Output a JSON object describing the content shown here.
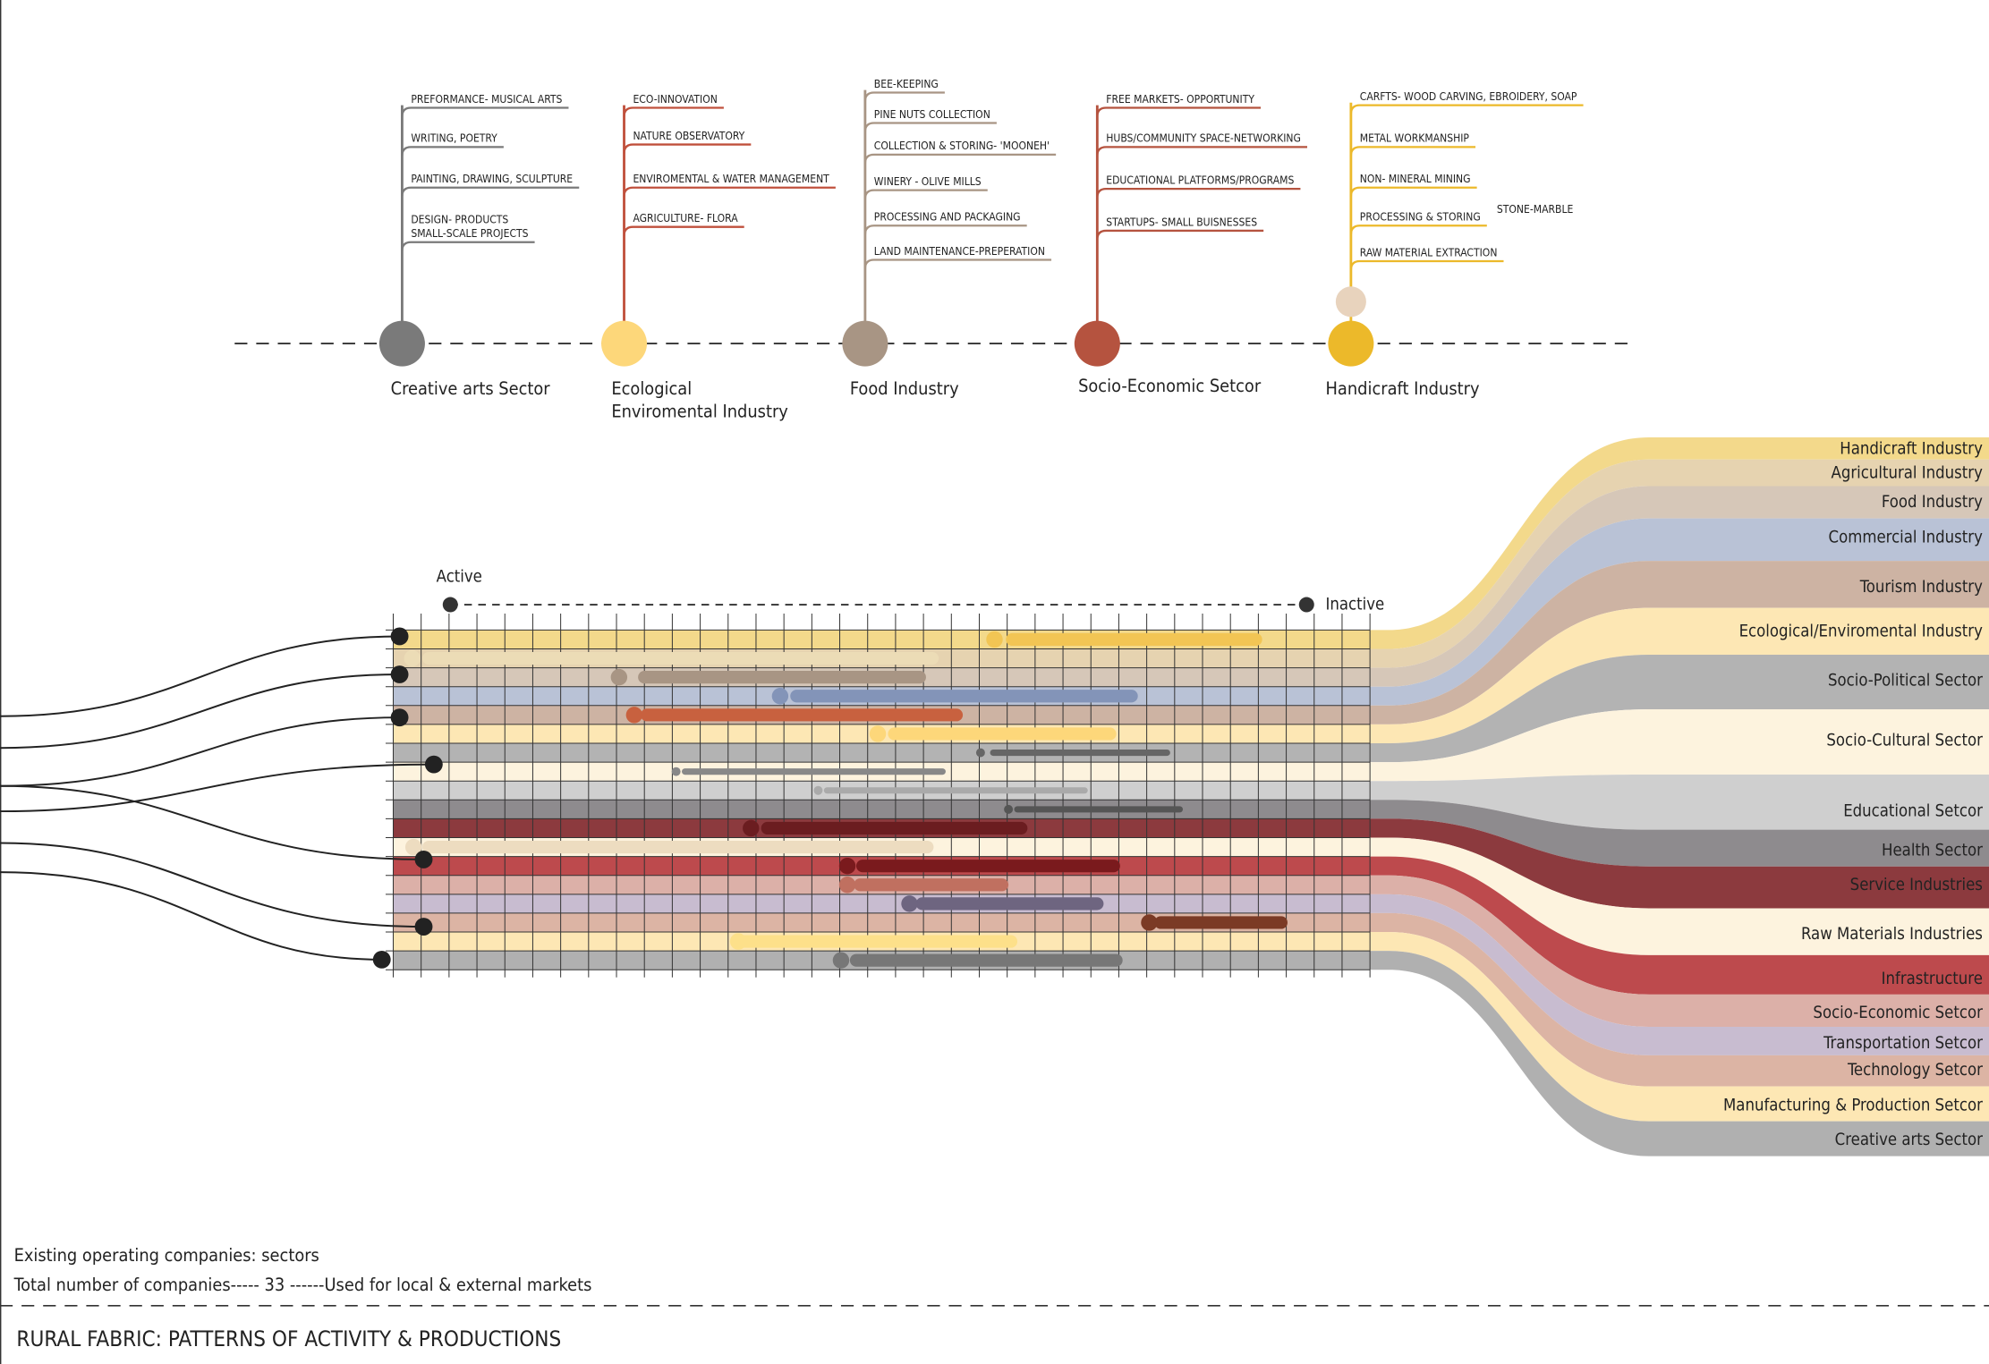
{
  "sectors": [
    {
      "name_lines": [
        "Creative arts Sector"
      ],
      "items": [
        "PREFORMANCE- MUSICAL ARTS",
        "WRITING, POETRY",
        "PAINTING, DRAWING, SCULPTURE",
        "DESIGN- PRODUCTS",
        "SMALL-SCALE PROJECTS"
      ]
    },
    {
      "name_lines": [
        "Ecological",
        "Enviromental Industry"
      ],
      "items": [
        "ECO-INNOVATION",
        "NATURE OBSERVATORY",
        "ENVIROMENTAL & WATER MANAGEMENT",
        "AGRICULTURE- FLORA"
      ]
    },
    {
      "name_lines": [
        "Food Industry"
      ],
      "items": [
        "BEE-KEEPING",
        "PINE NUTS COLLECTION",
        "COLLECTION & STORING- 'MOONEH'",
        "WINERY - OLIVE MILLS",
        "PROCESSING AND PACKAGING",
        "LAND MAINTENANCE-PREPERATION"
      ]
    },
    {
      "name_lines": [
        "Socio-Economic Setcor"
      ],
      "items": [
        "FREE MARKETS- OPPORTUNITY",
        "HUBS/COMMUNITY SPACE-NETWORKING",
        "EDUCATIONAL PLATFORMS/PROGRAMS",
        "STARTUPS- SMALL BUISNESSES"
      ]
    },
    {
      "name_lines": [
        "Handicraft Industry"
      ],
      "items": [
        "CARFTS- WOOD CARVING, EBROIDERY, SOAP",
        "METAL WORKMANSHIP",
        "NON- MINERAL MINING",
        "PROCESSING & STORING",
        "RAW MATERIAL EXTRACTION"
      ],
      "side_note": "STONE-MARBLE"
    }
  ],
  "timeline": {
    "active": "Active",
    "inactive": "Inactive"
  },
  "streams": [
    "Handicraft Industry",
    "Agricultural Industry",
    "Food Industry",
    "Commercial Industry",
    "Tourism Industry",
    "Ecological/Enviromental Industry",
    "Socio-Political Sector",
    "Socio-Cultural Sector",
    "Educational Setcor",
    "Health Sector",
    "Service Industries",
    "Raw Materials Industries",
    "Infrastructure",
    "Socio-Economic Setcor",
    "Transportation Setcor",
    "Technology Setcor",
    "Manufacturing & Production Setcor",
    "Creative arts Sector"
  ],
  "notes": [
    "Existing operating companies: sectors",
    "Total number of companies----- 33 ------Used for local & external markets"
  ],
  "footer": "RURAL FABRIC: PATTERNS OF ACTIVITY & PRODUCTIONS"
}
